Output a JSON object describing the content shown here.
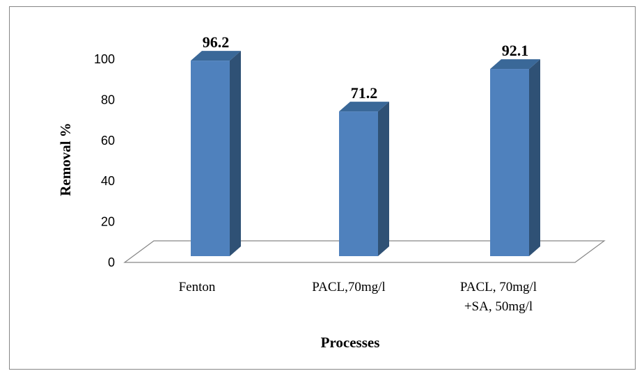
{
  "chart_data": {
    "type": "bar",
    "style": "3d-column",
    "categories": [
      [
        "Fenton"
      ],
      [
        "PACL,70mg/l"
      ],
      [
        "PACL, 70mg/l",
        "+SA, 50mg/l"
      ]
    ],
    "values": [
      96.2,
      71.2,
      92.1
    ],
    "data_labels": [
      "96.2",
      "71.2",
      "92.1"
    ],
    "xlabel": "Processes",
    "ylabel": "Removal %",
    "ylim": [
      0,
      100
    ],
    "yticks": [
      "0",
      "20",
      "40",
      "60",
      "80",
      "100"
    ],
    "grid": false,
    "legend": "none",
    "colors": {
      "bar_front": "#4F81BD",
      "bar_side": "#2F5175",
      "bar_top": "#3A6898",
      "floor_line": "#868686"
    }
  }
}
